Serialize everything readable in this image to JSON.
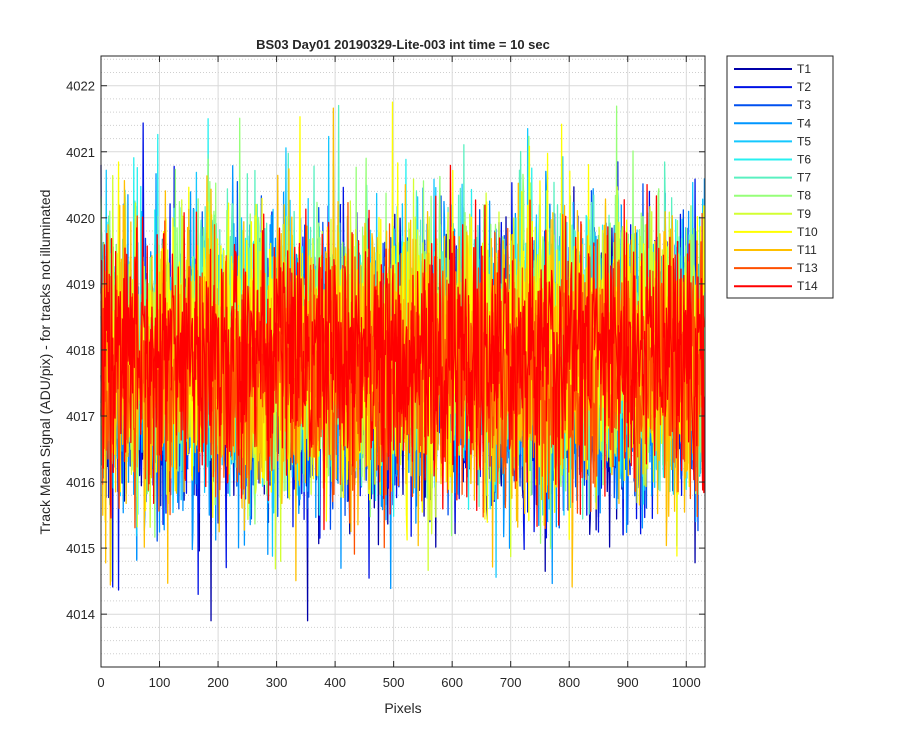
{
  "chart_data": {
    "type": "line",
    "title": "BS03 Day01 20190329-Lite-003 int time = 10 sec",
    "xlabel": "Pixels",
    "ylabel": "Track Mean Signal (ADU/pix) - for tracks not illuminated",
    "xlim": [
      0,
      1032
    ],
    "ylim": [
      4013.2,
      4022.45
    ],
    "xticks": [
      0,
      100,
      200,
      300,
      400,
      500,
      600,
      700,
      800,
      900,
      1000
    ],
    "yticks": [
      4014,
      4015,
      4016,
      4017,
      4018,
      4019,
      4020,
      4021,
      4022
    ],
    "grid": true,
    "minor_grid": true,
    "legend_position": "outside-top-right",
    "n_points": 1032,
    "series": [
      {
        "name": "T1",
        "color": "#0000a8",
        "mean": 4017.6,
        "min": 4013.9,
        "max": 4021.6
      },
      {
        "name": "T2",
        "color": "#0012e6",
        "mean": 4017.7,
        "min": 4014.3,
        "max": 4022.4
      },
      {
        "name": "T3",
        "color": "#0050f0",
        "mean": 4017.8,
        "min": 4013.6,
        "max": 4021.5
      },
      {
        "name": "T4",
        "color": "#0096ff",
        "mean": 4017.8,
        "min": 4013.1,
        "max": 4021.4
      },
      {
        "name": "T5",
        "color": "#14c8ff",
        "mean": 4017.9,
        "min": 4014.2,
        "max": 4021.6
      },
      {
        "name": "T6",
        "color": "#28f0f0",
        "mean": 4018.0,
        "min": 4014.6,
        "max": 4021.5
      },
      {
        "name": "T7",
        "color": "#5af0c0",
        "mean": 4018.1,
        "min": 4014.5,
        "max": 4021.7
      },
      {
        "name": "T8",
        "color": "#96ff78",
        "mean": 4018.1,
        "min": 4013.9,
        "max": 4021.9
      },
      {
        "name": "T9",
        "color": "#d2ff32",
        "mean": 4018.0,
        "min": 4014.5,
        "max": 4021.8
      },
      {
        "name": "T10",
        "color": "#ffff00",
        "mean": 4017.9,
        "min": 4013.8,
        "max": 4022.0
      },
      {
        "name": "T11",
        "color": "#ffc000",
        "mean": 4017.8,
        "min": 4013.7,
        "max": 4022.0
      },
      {
        "name": "T13",
        "color": "#ff5000",
        "mean": 4017.7,
        "min": 4014.3,
        "max": 4021.0
      },
      {
        "name": "T14",
        "color": "#ff0000",
        "mean": 4017.9,
        "min": 4014.1,
        "max": 4021.2
      }
    ]
  }
}
